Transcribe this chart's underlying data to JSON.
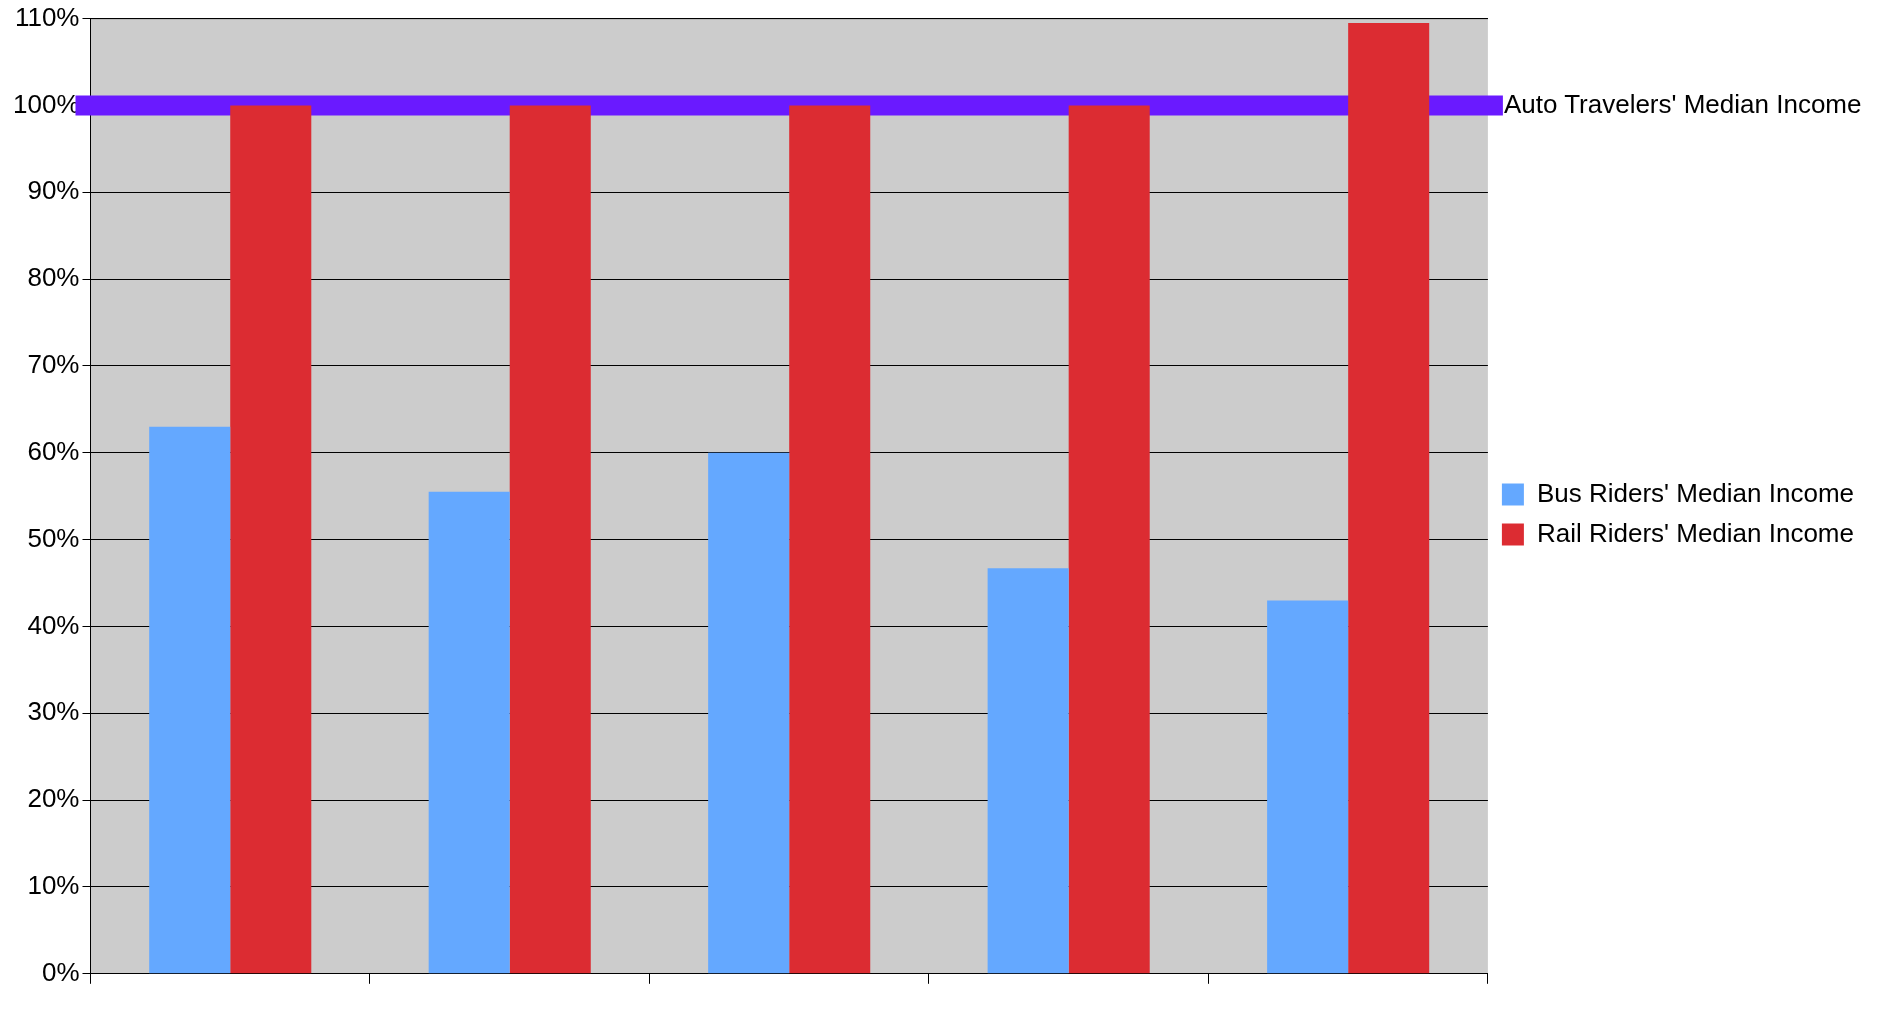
{
  "chart_data": {
    "type": "bar",
    "categories": [
      null,
      null,
      null,
      null,
      null
    ],
    "series": [
      {
        "name": "Bus Riders' Median Income",
        "color": "#64a8ff",
        "values": [
          63,
          55.5,
          60,
          46.7,
          43
        ]
      },
      {
        "name": "Rail Riders' Median Income",
        "color": "#dc2c32",
        "values": [
          100,
          100,
          100,
          100,
          109.5
        ]
      }
    ],
    "ylim": [
      0,
      110
    ],
    "yticks": [
      {
        "value": 0,
        "label": "0%"
      },
      {
        "value": 10,
        "label": "10%"
      },
      {
        "value": 20,
        "label": "20%"
      },
      {
        "value": 30,
        "label": "30%"
      },
      {
        "value": 40,
        "label": "40%"
      },
      {
        "value": 50,
        "label": "50%"
      },
      {
        "value": 60,
        "label": "60%"
      },
      {
        "value": 70,
        "label": "70%"
      },
      {
        "value": 80,
        "label": "80%"
      },
      {
        "value": 90,
        "label": "90%"
      },
      {
        "value": 100,
        "label": "100%"
      },
      {
        "value": 110,
        "label": "110%"
      }
    ],
    "ref_lines": [
      {
        "axis": "y",
        "value": 100,
        "label": "Auto Travelers' Median Income",
        "color": "#6a1aff"
      }
    ],
    "grid": "y",
    "legend": "right"
  }
}
